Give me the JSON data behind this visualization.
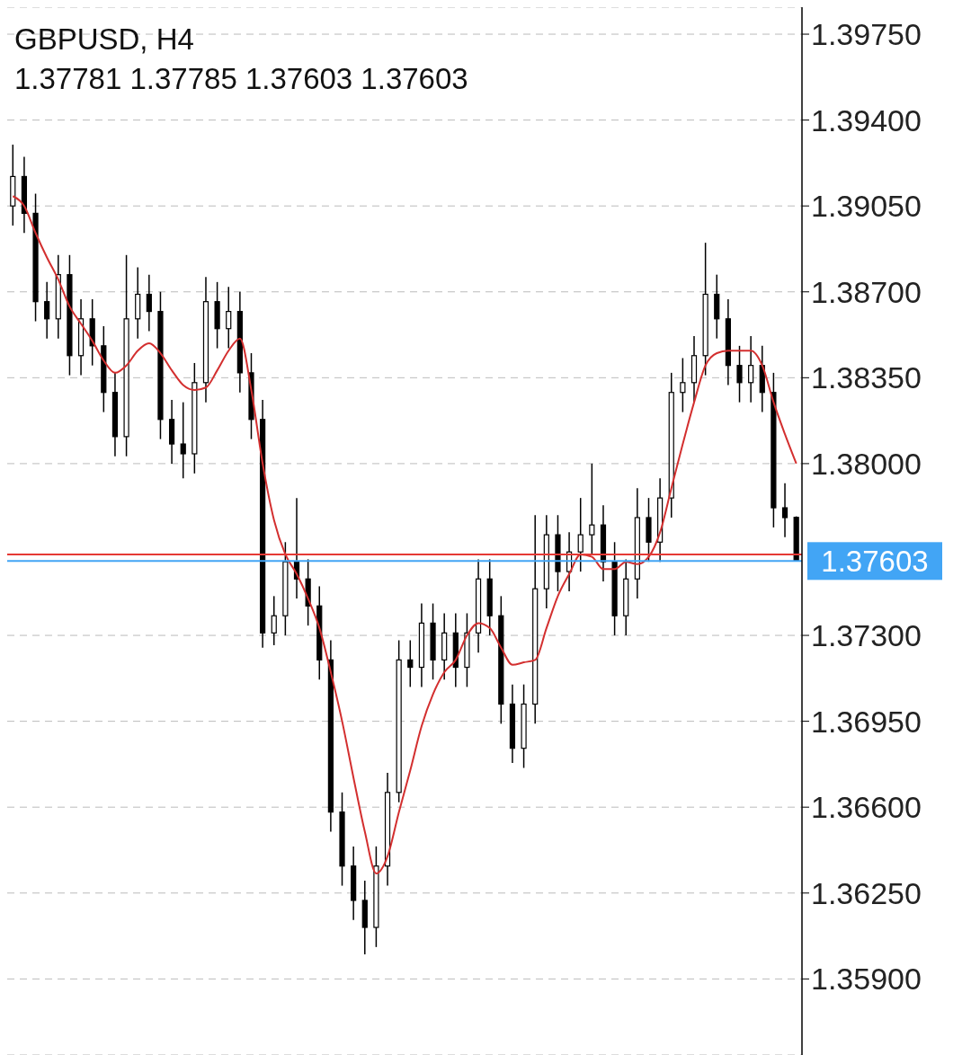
{
  "chart_data": {
    "type": "candlestick",
    "title": "GBPUSD, H4",
    "subtitle": "1.37781 1.37785 1.37603 1.37603",
    "categories": [
      null,
      null,
      null,
      null,
      null,
      null,
      null,
      null,
      null,
      null,
      null,
      null,
      null,
      null,
      null,
      null,
      null,
      null,
      null,
      null,
      null,
      null,
      null,
      null,
      null,
      null,
      null,
      null,
      null,
      null,
      null,
      null,
      null,
      null,
      null,
      null,
      null,
      null,
      null,
      null,
      null,
      null,
      null,
      null,
      null,
      null,
      null,
      null,
      null,
      null,
      null,
      null,
      null,
      null,
      null,
      null,
      null,
      null,
      null,
      null,
      null,
      null,
      null,
      null,
      null,
      null,
      null,
      null,
      null,
      null
    ],
    "ohlc": [
      [
        1.3905,
        1.393,
        1.3897,
        1.3917
      ],
      [
        1.3917,
        1.3925,
        1.3894,
        1.3902
      ],
      [
        1.3902,
        1.391,
        1.3858,
        1.3866
      ],
      [
        1.3866,
        1.3874,
        1.3851,
        1.3859
      ],
      [
        1.3859,
        1.3885,
        1.3851,
        1.3877
      ],
      [
        1.3877,
        1.3885,
        1.3836,
        1.3844
      ],
      [
        1.3844,
        1.3867,
        1.3836,
        1.3859
      ],
      [
        1.3859,
        1.3867,
        1.384,
        1.3848
      ],
      [
        1.3848,
        1.3856,
        1.3821,
        1.3829
      ],
      [
        1.3829,
        1.3837,
        1.3803,
        1.3811
      ],
      [
        1.3811,
        1.3885,
        1.3803,
        1.3859
      ],
      [
        1.3859,
        1.388,
        1.3851,
        1.3869
      ],
      [
        1.3869,
        1.3877,
        1.3854,
        1.3862
      ],
      [
        1.3862,
        1.387,
        1.381,
        1.3818
      ],
      [
        1.3818,
        1.3826,
        1.38,
        1.3808
      ],
      [
        1.3808,
        1.3825,
        1.3794,
        1.3804
      ],
      [
        1.3804,
        1.3841,
        1.3796,
        1.3833
      ],
      [
        1.3833,
        1.3876,
        1.3825,
        1.3866
      ],
      [
        1.3866,
        1.3874,
        1.3847,
        1.3855
      ],
      [
        1.3855,
        1.3872,
        1.3847,
        1.3862
      ],
      [
        1.3862,
        1.387,
        1.3829,
        1.3837
      ],
      [
        1.3837,
        1.3845,
        1.381,
        1.3818
      ],
      [
        1.3818,
        1.3826,
        1.3725,
        1.3731
      ],
      [
        1.3731,
        1.3746,
        1.3726,
        1.3738
      ],
      [
        1.3738,
        1.3768,
        1.373,
        1.376
      ],
      [
        1.376,
        1.3786,
        1.3745,
        1.3753
      ],
      [
        1.3753,
        1.3761,
        1.3734,
        1.3742
      ],
      [
        1.3742,
        1.375,
        1.3712,
        1.372
      ],
      [
        1.372,
        1.3728,
        1.365,
        1.3658
      ],
      [
        1.3658,
        1.3666,
        1.3628,
        1.3636
      ],
      [
        1.3636,
        1.3644,
        1.3614,
        1.3622
      ],
      [
        1.3622,
        1.363,
        1.36,
        1.3611
      ],
      [
        1.3611,
        1.3644,
        1.3603,
        1.3636
      ],
      [
        1.3636,
        1.3674,
        1.3628,
        1.3666
      ],
      [
        1.3666,
        1.3728,
        1.3662,
        1.372
      ],
      [
        1.372,
        1.3728,
        1.3709,
        1.3717
      ],
      [
        1.3717,
        1.3743,
        1.3709,
        1.3735
      ],
      [
        1.3735,
        1.3743,
        1.3712,
        1.372
      ],
      [
        1.372,
        1.3739,
        1.3712,
        1.3731
      ],
      [
        1.3731,
        1.3739,
        1.3709,
        1.3717
      ],
      [
        1.3717,
        1.3739,
        1.3709,
        1.3731
      ],
      [
        1.3731,
        1.3761,
        1.3723,
        1.3753
      ],
      [
        1.3753,
        1.3761,
        1.373,
        1.3738
      ],
      [
        1.3738,
        1.3746,
        1.3694,
        1.3702
      ],
      [
        1.3702,
        1.371,
        1.3678,
        1.3684
      ],
      [
        1.3684,
        1.371,
        1.3676,
        1.3702
      ],
      [
        1.3702,
        1.3779,
        1.3694,
        1.3749
      ],
      [
        1.3749,
        1.3779,
        1.3741,
        1.3771
      ],
      [
        1.3771,
        1.3779,
        1.3748,
        1.3756
      ],
      [
        1.3756,
        1.3772,
        1.3748,
        1.3764
      ],
      [
        1.3764,
        1.3786,
        1.3756,
        1.3771
      ],
      [
        1.3771,
        1.38,
        1.3763,
        1.3775
      ],
      [
        1.3775,
        1.3783,
        1.3752,
        1.376
      ],
      [
        1.376,
        1.3768,
        1.373,
        1.3738
      ],
      [
        1.3738,
        1.3761,
        1.373,
        1.3753
      ],
      [
        1.3753,
        1.379,
        1.3745,
        1.3778
      ],
      [
        1.3778,
        1.3786,
        1.376,
        1.3768
      ],
      [
        1.3768,
        1.3794,
        1.376,
        1.3786
      ],
      [
        1.3786,
        1.3837,
        1.3778,
        1.3829
      ],
      [
        1.3829,
        1.3843,
        1.3821,
        1.3833
      ],
      [
        1.3833,
        1.3852,
        1.3825,
        1.3844
      ],
      [
        1.3844,
        1.389,
        1.3836,
        1.3869
      ],
      [
        1.3869,
        1.3877,
        1.3851,
        1.3859
      ],
      [
        1.3859,
        1.3867,
        1.3832,
        1.384
      ],
      [
        1.384,
        1.3848,
        1.3825,
        1.3833
      ],
      [
        1.3833,
        1.3852,
        1.3825,
        1.384
      ],
      [
        1.384,
        1.3848,
        1.3821,
        1.3829
      ],
      [
        1.3829,
        1.3837,
        1.3774,
        1.3782
      ],
      [
        1.3782,
        1.3792,
        1.377,
        1.3778
      ],
      [
        1.37781,
        1.37785,
        1.37603,
        1.37603
      ]
    ],
    "series": [
      {
        "type": "line",
        "color": "#d32f2f",
        "values": [
          1.3909,
          1.3905,
          1.3894,
          1.3884,
          1.3875,
          1.3864,
          1.3857,
          1.385,
          1.3842,
          1.3837,
          1.384,
          1.3846,
          1.3849,
          1.3845,
          1.3838,
          1.3832,
          1.383,
          1.3831,
          1.3838,
          1.3846,
          1.3851,
          1.383,
          1.38,
          1.3777,
          1.3763,
          1.3755,
          1.3745,
          1.3733,
          1.3715,
          1.3695,
          1.3672,
          1.365,
          1.3633,
          1.364,
          1.3658,
          1.3675,
          1.3693,
          1.3706,
          1.3715,
          1.372,
          1.373,
          1.3735,
          1.3733,
          1.3725,
          1.3718,
          1.3719,
          1.372,
          1.3733,
          1.3746,
          1.3755,
          1.3763,
          1.3762,
          1.3757,
          1.3757,
          1.376,
          1.3759,
          1.3762,
          1.3772,
          1.379,
          1.3808,
          1.3825,
          1.384,
          1.3845,
          1.3846,
          1.3846,
          1.3846,
          1.384,
          1.3825,
          1.3812,
          1.38
        ]
      }
    ],
    "ylim": [
      1.3559,
      1.3986
    ],
    "yticks": [
      {
        "value": 1.359,
        "label": "1.35900"
      },
      {
        "value": 1.3625,
        "label": "1.36250"
      },
      {
        "value": 1.366,
        "label": "1.36600"
      },
      {
        "value": 1.3695,
        "label": "1.36950"
      },
      {
        "value": 1.373,
        "label": "1.37300"
      },
      {
        "value": 1.38,
        "label": "1.38000"
      },
      {
        "value": 1.3835,
        "label": "1.38350"
      },
      {
        "value": 1.387,
        "label": "1.38700"
      },
      {
        "value": 1.3905,
        "label": "1.39050"
      },
      {
        "value": 1.394,
        "label": "1.39400"
      },
      {
        "value": 1.3975,
        "label": "1.39750"
      }
    ],
    "grid": "y",
    "tick_labels": "y",
    "ref_lines": [
      {
        "axis": "y",
        "value": 1.3763,
        "label": null,
        "color": "#e53935"
      },
      {
        "axis": "y",
        "value": 1.37603,
        "label": "1.37603",
        "color": "#42a5f5"
      }
    ]
  }
}
